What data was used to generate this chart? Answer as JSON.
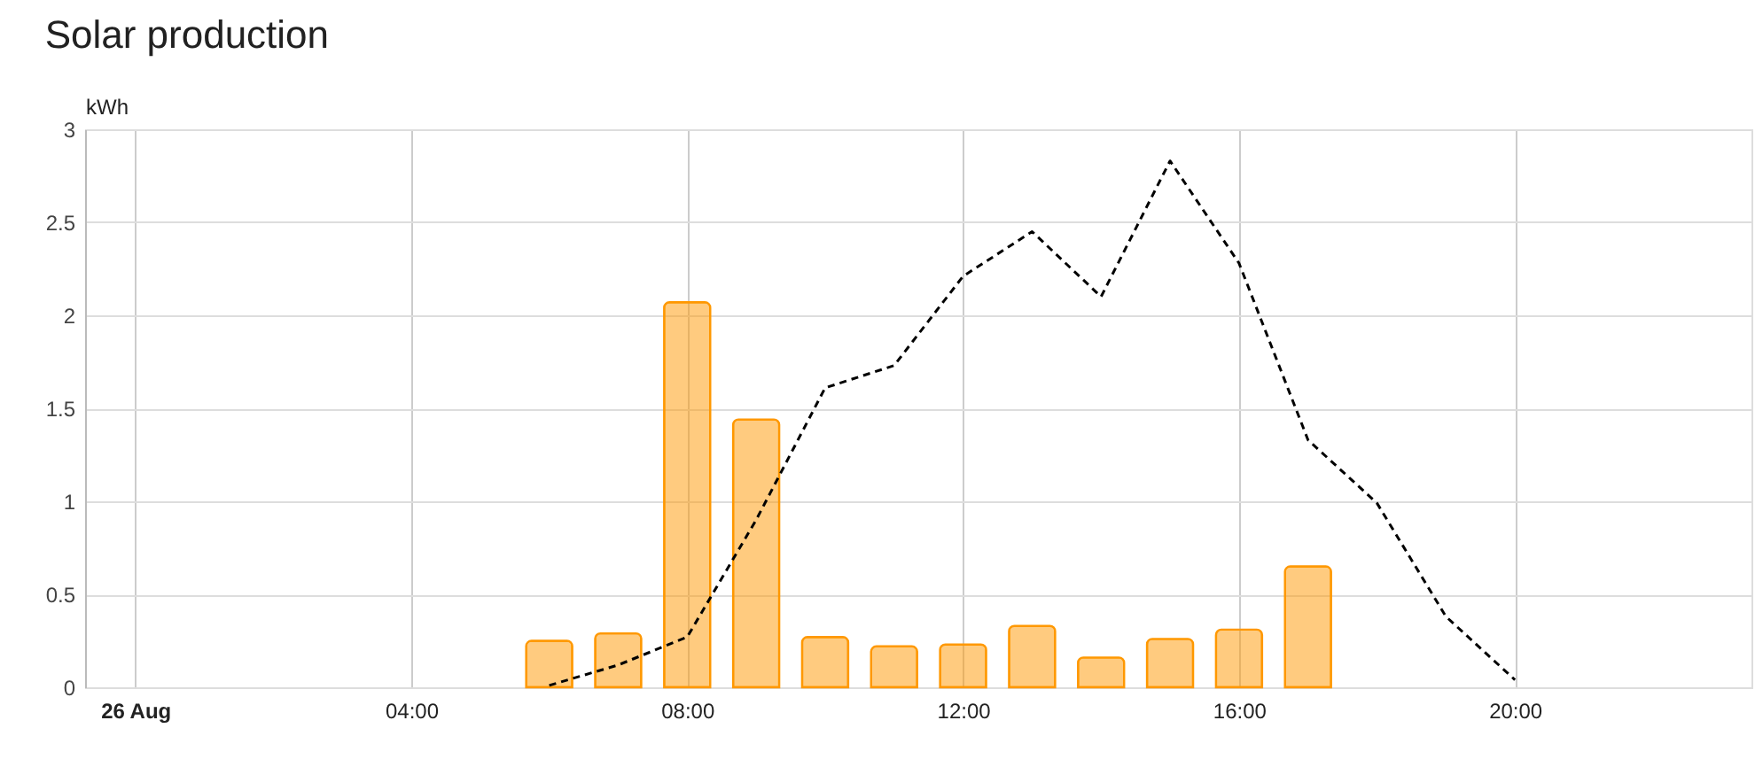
{
  "chart_data": {
    "type": "bar",
    "title": "Solar production",
    "ylabel": "kWh",
    "series": [
      {
        "color": "#ff9800",
        "x": [
          6,
          7,
          8,
          9,
          10,
          11,
          12,
          13,
          14,
          15,
          16,
          17
        ],
        "values": [
          0.25,
          0.29,
          2.07,
          1.44,
          0.27,
          0.22,
          0.23,
          0.33,
          0.16,
          0.26,
          0.31,
          0.65
        ]
      },
      {
        "type": "line",
        "color": "#000000",
        "line_style": "dashed",
        "x": [
          6,
          7,
          8,
          9,
          10,
          11,
          12,
          13,
          14,
          15,
          16,
          17,
          18,
          19,
          20
        ],
        "values": [
          0.01,
          0.12,
          0.27,
          0.9,
          1.61,
          1.73,
          2.21,
          2.45,
          2.1,
          2.83,
          2.28,
          1.33,
          0.99,
          0.38,
          0.04
        ]
      }
    ],
    "xlim": [
      -0.6,
      23.3
    ],
    "xticks": [
      {
        "value": 0,
        "label": "26 Aug"
      },
      {
        "value": 4,
        "label": "04:00"
      },
      {
        "value": 8,
        "label": "08:00"
      },
      {
        "value": 12,
        "label": "12:00"
      },
      {
        "value": 16,
        "label": "16:00"
      },
      {
        "value": 20,
        "label": "20:00"
      }
    ],
    "ylim": [
      0,
      3
    ],
    "yticks": [
      0,
      0.5,
      1,
      1.5,
      2,
      2.5,
      3
    ],
    "grid": true
  }
}
